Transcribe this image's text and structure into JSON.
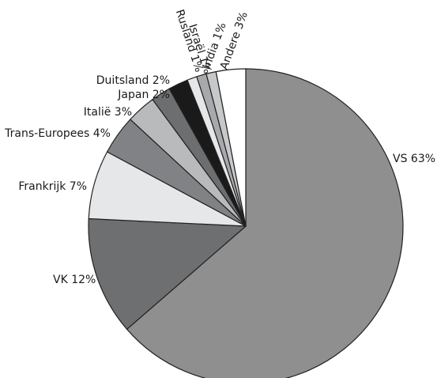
{
  "chart_data": {
    "type": "pie",
    "title": "",
    "start": "12 o'clock",
    "direction": "clockwise",
    "slices": [
      {
        "label": "VS 63%",
        "name": "VS",
        "value": 63,
        "color": "#8f8f8f"
      },
      {
        "label": "VK 12%",
        "name": "VK",
        "value": 12,
        "color": "#6e6f71"
      },
      {
        "label": "Frankrijk 7%",
        "name": "Frankrijk",
        "value": 7,
        "color": "#e6e7e8"
      },
      {
        "label": "Trans-Europees 4%",
        "name": "Trans-Europees",
        "value": 4,
        "color": "#808285"
      },
      {
        "label": "Italië 3%",
        "name": "Italië",
        "value": 3,
        "color": "#b9babc"
      },
      {
        "label": "Duitsland 2%",
        "name": "Duitsland",
        "value": 2,
        "color": "#6d6e70"
      },
      {
        "label": "Japan 2%",
        "name": "Japan",
        "value": 2,
        "color": "#1a1a1a"
      },
      {
        "label": "Rusland 1%",
        "name": "Rusland",
        "value": 1,
        "color": "#e6e7e8"
      },
      {
        "label": "Israël 1%",
        "name": "Israël",
        "value": 1,
        "color": "#a7a9ac"
      },
      {
        "label": "India 1%",
        "name": "India",
        "value": 1,
        "color": "#c7c8ca"
      },
      {
        "label": "Andere 3%",
        "name": "Andere",
        "value": 3,
        "color": "#ffffff"
      }
    ]
  }
}
